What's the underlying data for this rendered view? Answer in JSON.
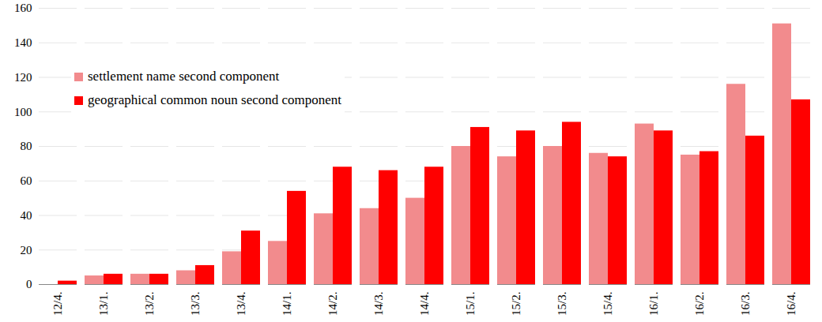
{
  "chart_data": {
    "type": "bar",
    "categories": [
      "12/4.",
      "13/1.",
      "13/2.",
      "13/3.",
      "13/4.",
      "14/1.",
      "14/2.",
      "14/3.",
      "14/4.",
      "15/1.",
      "15/2.",
      "15/3.",
      "15/4.",
      "16/1.",
      "16/2.",
      "16/3.",
      "16/4."
    ],
    "series": [
      {
        "name": "settlement name second component",
        "color": "#f28b8d",
        "values": [
          0,
          5,
          6,
          8,
          19,
          25,
          41,
          44,
          50,
          80,
          74,
          80,
          76,
          93,
          75,
          116,
          151
        ]
      },
      {
        "name": "geographical common noun second component",
        "color": "#ff0000",
        "values": [
          2,
          6,
          6,
          11,
          31,
          54,
          68,
          66,
          68,
          91,
          89,
          94,
          74,
          89,
          77,
          86,
          107
        ]
      }
    ],
    "ylim": [
      0,
      160
    ],
    "yticks": [
      0,
      20,
      40,
      60,
      80,
      100,
      120,
      140,
      160
    ],
    "grid": true,
    "legend": "top-left"
  }
}
